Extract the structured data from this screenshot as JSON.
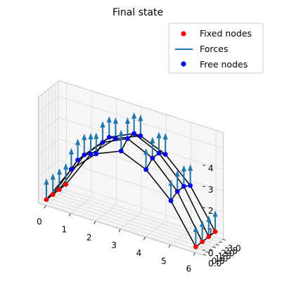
{
  "chart_data": {
    "type": "3d-structure",
    "title": "Final state",
    "colors": {
      "fixed": "#ff0000",
      "free": "#0000ff",
      "force": "#1f77b4",
      "member": "#000000",
      "grid": "#d9d9d9",
      "pane": "#f2f2f2"
    },
    "axes": {
      "x": {
        "ticks": [
          "0",
          "1",
          "2",
          "3",
          "4",
          "5",
          "6"
        ],
        "range": [
          0,
          6
        ]
      },
      "y": {
        "ticks": [
          "0.0",
          "0.5",
          "1.0",
          "1.5",
          "2.0",
          "2.5",
          "3.0"
        ],
        "range": [
          0,
          3
        ]
      },
      "z": {
        "ticks": [
          "0",
          "1",
          "2",
          "3",
          "4"
        ],
        "range": [
          0,
          4.6
        ]
      }
    },
    "grid": true,
    "legend": {
      "placement": "upper-right",
      "entries": [
        {
          "label": "Fixed nodes",
          "kind": "marker",
          "color": "#ff0000"
        },
        {
          "label": "Forces",
          "kind": "line",
          "color": "#1f77b4"
        },
        {
          "label": "Free nodes",
          "kind": "marker",
          "color": "#0000ff"
        }
      ]
    },
    "x_stations": [
      0,
      1,
      2,
      3,
      4,
      5,
      6
    ],
    "rows": [
      {
        "y": 0,
        "z": [
          0.0,
          1.8,
          2.9,
          3.4,
          2.9,
          1.8,
          0.0
        ]
      },
      {
        "y": 1,
        "z": [
          0.0,
          2.0,
          3.2,
          3.75,
          3.2,
          2.0,
          0.0
        ]
      },
      {
        "y": 2,
        "z": [
          0.0,
          2.0,
          3.2,
          3.75,
          3.2,
          2.0,
          0.0
        ]
      },
      {
        "y": 3,
        "z": [
          0.0,
          1.8,
          2.9,
          3.4,
          2.9,
          1.8,
          0.0
        ]
      }
    ],
    "force_length_z": 0.9
  }
}
